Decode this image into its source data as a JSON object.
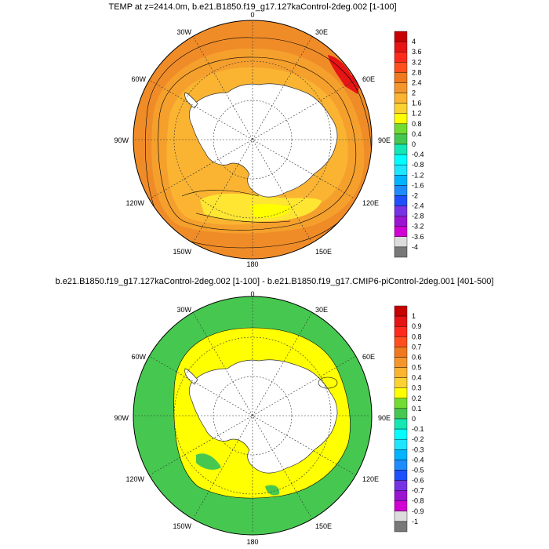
{
  "panels": [
    {
      "title": "TEMP at z=2414.0m, b.e21.B1850.f19_g17.127kaControl-2deg.002 [1-100]",
      "lon_labels": {
        "lon_0": "0",
        "lon_30e": "30E",
        "lon_60e": "60E",
        "lon_90e": "90E",
        "lon_120e": "120E",
        "lon_150e": "150E",
        "lon_180": "180",
        "lon_150w": "150W",
        "lon_120w": "120W",
        "lon_90w": "90W",
        "lon_60w": "60W",
        "lon_30w": "30W"
      },
      "colorbar": {
        "labels": [
          "4",
          "3.6",
          "3.2",
          "2.8",
          "2.4",
          "2",
          "1.6",
          "1.2",
          "0.8",
          "0.4",
          "0",
          "-0.4",
          "-0.8",
          "-1.2",
          "-1.6",
          "-2",
          "-2.4",
          "-2.8",
          "-3.2",
          "-3.6",
          "-4"
        ],
        "colors": [
          "#c80000",
          "#e61414",
          "#ff2a1e",
          "#ff4f1e",
          "#f0781e",
          "#f5962d",
          "#fab432",
          "#fad232",
          "#ffff00",
          "#73dc32",
          "#46c850",
          "#14e6b4",
          "#00ffff",
          "#1ee6ff",
          "#00b4ff",
          "#1e8cff",
          "#1e50ff",
          "#7832e6",
          "#9b14d2",
          "#d200d2",
          "#dcdcdc",
          "#787878"
        ]
      },
      "regions": {
        "outer": "#f08c28",
        "mid": "#f5a02d",
        "inner": "#fab432",
        "shelf": "#ffe632",
        "pocket": "#ffff00",
        "warm": "#e61414",
        "land": "#ffffff"
      }
    },
    {
      "title": "b.e21.B1850.f19_g17.127kaControl-2deg.002 [1-100] - b.e21.B1850.f19_g17.CMIP6-piControl-2deg.001 [401-500]",
      "lon_labels": {
        "lon_0": "0",
        "lon_30e": "30E",
        "lon_60e": "60E",
        "lon_90e": "90E",
        "lon_120e": "120E",
        "lon_150e": "150E",
        "lon_180": "180",
        "lon_150w": "150W",
        "lon_120w": "120W",
        "lon_90w": "90W",
        "lon_60w": "60W",
        "lon_30w": "30W"
      },
      "colorbar": {
        "labels": [
          "1",
          "0.9",
          "0.8",
          "0.7",
          "0.6",
          "0.5",
          "0.4",
          "0.3",
          "0.2",
          "0.1",
          "0",
          "-0.1",
          "-0.2",
          "-0.3",
          "-0.4",
          "-0.5",
          "-0.6",
          "-0.7",
          "-0.8",
          "-0.9",
          "-1"
        ],
        "colors": [
          "#c80000",
          "#e61414",
          "#ff2a1e",
          "#ff4f1e",
          "#f0781e",
          "#f5962d",
          "#fab432",
          "#fad232",
          "#ffff00",
          "#73dc32",
          "#46c850",
          "#14e6b4",
          "#00ffff",
          "#1ee6ff",
          "#00b4ff",
          "#1e8cff",
          "#1e50ff",
          "#7832e6",
          "#9b14d2",
          "#d200d2",
          "#dcdcdc",
          "#787878"
        ]
      },
      "regions": {
        "outer": "#46c850",
        "inner": "#ffff00",
        "patch": "#46c850",
        "land": "#ffffff"
      }
    }
  ]
}
